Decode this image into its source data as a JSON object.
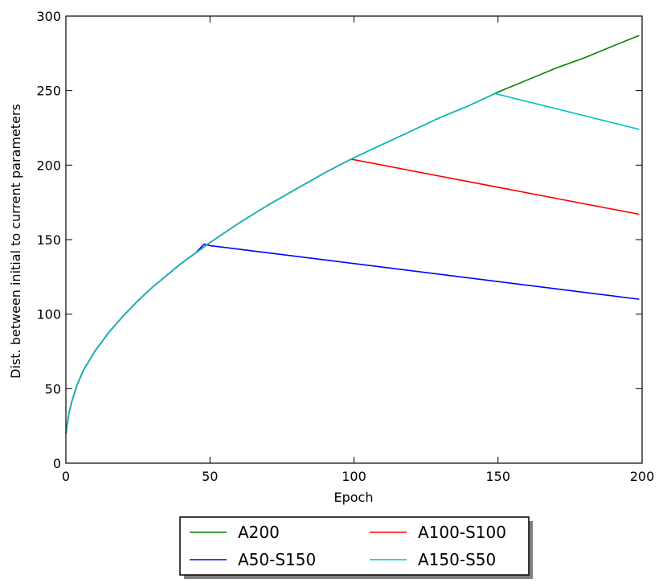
{
  "chart_data": {
    "type": "line",
    "title": "",
    "xlabel": "Epoch",
    "ylabel": "Dist. between initial to current parameters",
    "xlim": [
      0,
      200
    ],
    "ylim": [
      0,
      300
    ],
    "xticks": [
      0,
      50,
      100,
      150,
      200
    ],
    "yticks": [
      0,
      50,
      100,
      150,
      200,
      250,
      300
    ],
    "grid": false,
    "legend_placement": "below",
    "series": [
      {
        "name": "A200",
        "color": "#008000",
        "x": [
          0,
          1,
          2,
          4,
          6,
          10,
          15,
          20,
          25,
          30,
          35,
          40,
          45,
          50,
          60,
          70,
          80,
          90,
          100,
          110,
          120,
          130,
          140,
          150,
          160,
          170,
          180,
          190,
          199
        ],
        "y": [
          20,
          33,
          41,
          53,
          62,
          75,
          88,
          99,
          109,
          118,
          126,
          134,
          141,
          148,
          161,
          173,
          184,
          195,
          205,
          214,
          223,
          232,
          240,
          249,
          257,
          265,
          272,
          280,
          287
        ]
      },
      {
        "name": "A50-S150",
        "color": "#0000ff",
        "x": [
          0,
          1,
          2,
          4,
          6,
          10,
          15,
          20,
          25,
          30,
          35,
          40,
          45,
          48,
          50,
          199
        ],
        "y": [
          20,
          33,
          41,
          53,
          62,
          75,
          88,
          99,
          109,
          118,
          126,
          134,
          141,
          147,
          146,
          110
        ]
      },
      {
        "name": "A100-S100",
        "color": "#ff0000",
        "x": [
          0,
          1,
          2,
          4,
          6,
          10,
          15,
          20,
          25,
          30,
          35,
          40,
          45,
          50,
          60,
          70,
          80,
          90,
          99,
          199
        ],
        "y": [
          20,
          33,
          41,
          53,
          62,
          75,
          88,
          99,
          109,
          118,
          126,
          134,
          141,
          148,
          161,
          173,
          184,
          195,
          204,
          167
        ]
      },
      {
        "name": "A150-S50",
        "color": "#00bfbf",
        "x": [
          0,
          1,
          2,
          4,
          6,
          10,
          15,
          20,
          25,
          30,
          35,
          40,
          45,
          50,
          60,
          70,
          80,
          90,
          100,
          110,
          120,
          130,
          140,
          149,
          199
        ],
        "y": [
          20,
          33,
          41,
          53,
          62,
          75,
          88,
          99,
          109,
          118,
          126,
          134,
          141,
          148,
          161,
          173,
          184,
          195,
          205,
          214,
          223,
          232,
          240,
          248,
          224
        ]
      }
    ]
  }
}
